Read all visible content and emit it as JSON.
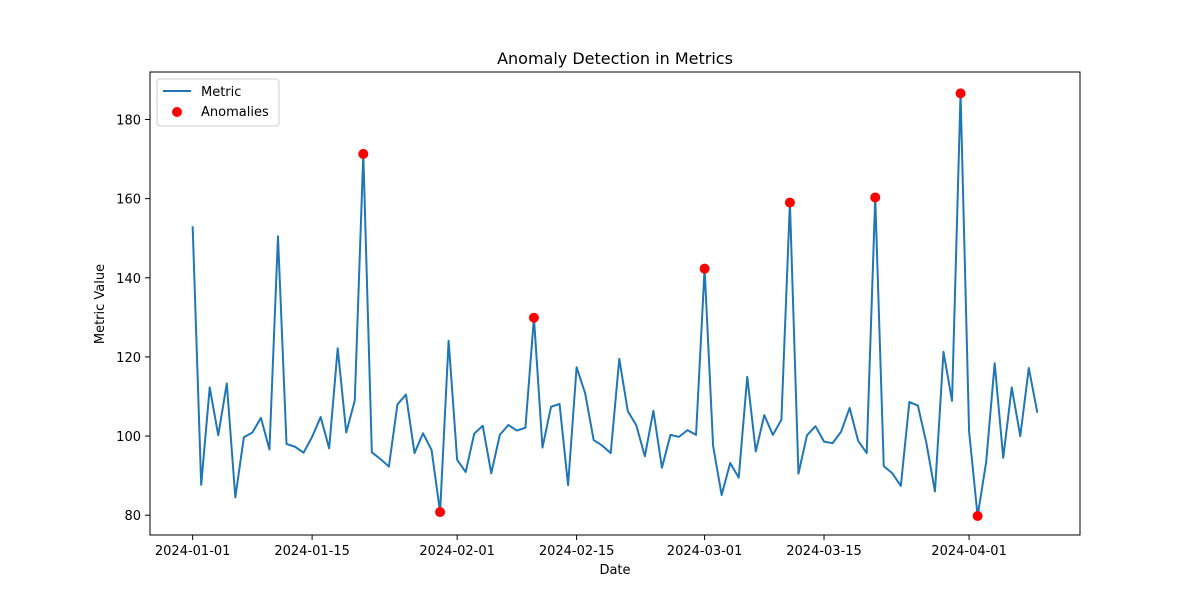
{
  "chart_data": {
    "type": "line",
    "title": "Anomaly Detection in Metrics",
    "xlabel": "Date",
    "ylabel": "Metric Value",
    "x_start": "2024-01-01",
    "xlim": [
      "2023-12-27",
      "2024-04-14"
    ],
    "ylim": [
      75,
      192
    ],
    "x_ticks": [
      "2024-01-01",
      "2024-01-15",
      "2024-02-01",
      "2024-02-15",
      "2024-03-01",
      "2024-03-15",
      "2024-04-01"
    ],
    "y_ticks": [
      80,
      100,
      120,
      140,
      160,
      180
    ],
    "grid": false,
    "legend_position": "top-left",
    "series": [
      {
        "name": "Metric",
        "kind": "line",
        "color": "#1f77b4",
        "values": [
          153.0,
          87.7,
          112.3,
          100.2,
          113.3,
          84.5,
          99.7,
          100.9,
          104.6,
          96.6,
          150.5,
          98.0,
          97.3,
          95.8,
          99.8,
          104.8,
          96.9,
          122.2,
          100.9,
          109.0,
          171.3,
          95.9,
          94.2,
          92.3,
          108.0,
          110.5,
          95.7,
          100.7,
          96.5,
          80.8,
          124.1,
          94.0,
          90.9,
          100.6,
          102.6,
          90.6,
          100.3,
          102.8,
          101.4,
          102.1,
          129.9,
          97.1,
          107.4,
          108.1,
          87.6,
          117.4,
          110.8,
          99.0,
          97.6,
          95.7,
          119.5,
          106.3,
          102.7,
          94.9,
          106.4,
          92.0,
          100.3,
          99.8,
          101.5,
          100.3,
          142.3,
          97.5,
          85.1,
          93.2,
          89.5,
          115.0,
          96.1,
          105.3,
          100.3,
          104.1,
          159.0,
          90.5,
          100.2,
          102.5,
          98.6,
          98.2,
          101.1,
          107.1,
          98.8,
          95.7,
          160.3,
          92.4,
          90.6,
          87.4,
          108.6,
          107.7,
          98.2,
          86.0,
          121.3,
          108.9,
          186.6,
          101.2,
          79.8,
          93.4,
          118.4,
          94.5,
          112.3,
          100.0,
          117.2,
          105.9
        ]
      },
      {
        "name": "Anomalies",
        "kind": "scatter",
        "color": "#ff0000",
        "points": [
          {
            "x": "2024-01-21",
            "y": 171.3
          },
          {
            "x": "2024-01-30",
            "y": 80.8
          },
          {
            "x": "2024-02-10",
            "y": 129.9
          },
          {
            "x": "2024-03-01",
            "y": 142.3
          },
          {
            "x": "2024-03-11",
            "y": 159.0
          },
          {
            "x": "2024-03-21",
            "y": 160.3
          },
          {
            "x": "2024-03-31",
            "y": 186.6
          },
          {
            "x": "2024-04-02",
            "y": 79.8
          }
        ]
      }
    ]
  }
}
